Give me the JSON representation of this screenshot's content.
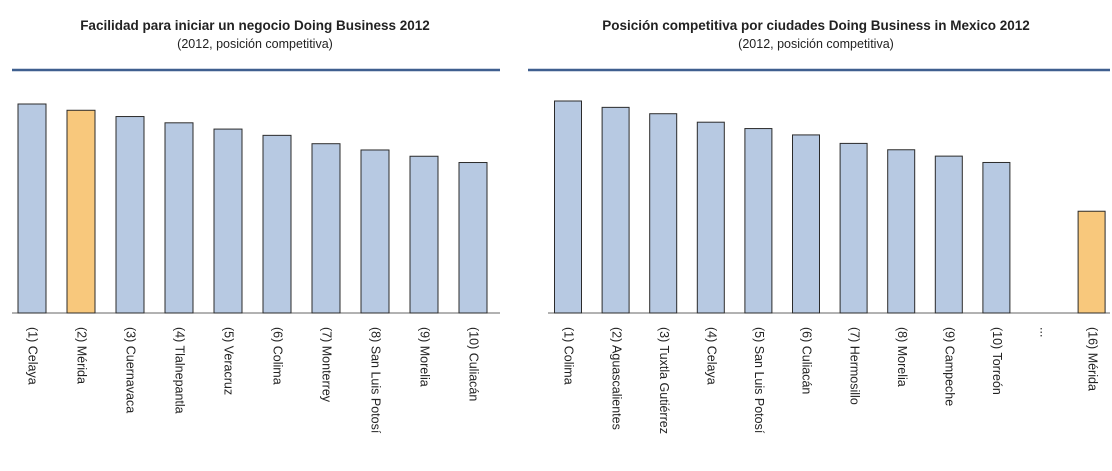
{
  "colors": {
    "bar": "#b7c9e2",
    "highlight": "#f8c87c",
    "rule": "#3f5f8f",
    "axis": "#666666"
  },
  "chart_data": [
    {
      "type": "bar",
      "title": "Facilidad para iniciar un negocio Doing Business 2012",
      "subtitle": "(2012, posición competitiva)",
      "xlabel": "",
      "ylabel": "",
      "ylim": [
        0,
        100
      ],
      "grid": false,
      "categories": [
        "(1) Celaya",
        "(2) Mérida",
        "(3) Cuernavaca",
        "(4) Tlalnepantla",
        "(5) Veracruz",
        "(6) Colima",
        "(7) Monterrey",
        "(8) San Luis Potosí",
        "(9) Morelia",
        "(10) Culiacán"
      ],
      "values": [
        100,
        97,
        94,
        91,
        88,
        85,
        81,
        78,
        75,
        72
      ],
      "highlight": [
        1
      ]
    },
    {
      "type": "bar",
      "title": "Posición competitiva por ciudades Doing Business in Mexico 2012",
      "subtitle": "(2012, posición competitiva)",
      "xlabel": "",
      "ylabel": "",
      "ylim": [
        0,
        100
      ],
      "grid": false,
      "categories": [
        "(1) Colima",
        "(2) Aguascalientes",
        "(3) Tuxtla Gutiérrez",
        "(4) Celaya",
        "(5) San Luis Potosí",
        "(6) Culiacán",
        "(7) Hermosillo",
        "(8) Morelia",
        "(9) Campeche",
        "(10) Torreón",
        "...",
        "(16) Mérida"
      ],
      "values": [
        100,
        97,
        94,
        90,
        87,
        84,
        80,
        77,
        74,
        71,
        null,
        48
      ],
      "highlight": [
        11
      ]
    }
  ]
}
